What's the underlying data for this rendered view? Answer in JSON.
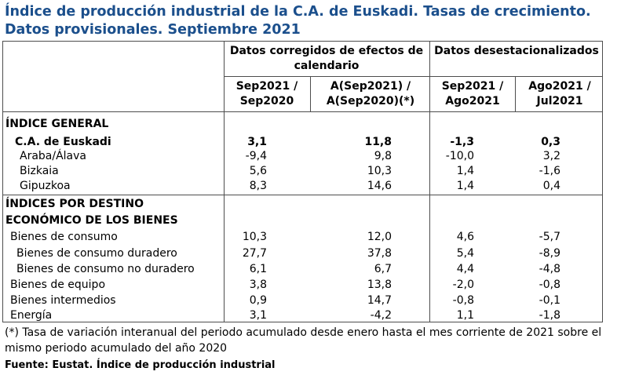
{
  "title": {
    "line1": "Índice de producción industrial de la C.A. de Euskadi. Tasas de crecimiento.",
    "line2": "Datos provisionales. Septiembre 2021"
  },
  "header": {
    "group1": "Datos corregidos de efectos de calendario",
    "group2": "Datos desestacionalizados",
    "col1": "Sep2021 / Sep2020",
    "col2": "A(Sep2021) / A(Sep2020)(*)",
    "col3": "Sep2021 / Ago2021",
    "col4": "Ago2021 / Jul2021"
  },
  "sections": {
    "general": "ÍNDICE GENERAL",
    "destino_line1": "ÍNDICES POR DESTINO",
    "destino_line2": "ECONÓMICO DE LOS BIENES"
  },
  "rows": [
    {
      "label": "C.A. de Euskadi",
      "v": [
        "3,1",
        "11,8",
        "-1,3",
        "0,3"
      ]
    },
    {
      "label": "Araba/Álava",
      "v": [
        "-9,4",
        "9,8",
        "-10,0",
        "3,2"
      ]
    },
    {
      "label": "Bizkaia",
      "v": [
        "5,6",
        "10,3",
        "1,4",
        "-1,6"
      ]
    },
    {
      "label": "Gipuzkoa",
      "v": [
        "8,3",
        "14,6",
        "1,4",
        "0,4"
      ]
    },
    {
      "label": "Bienes de consumo",
      "v": [
        "10,3",
        "12,0",
        "4,6",
        "-5,7"
      ]
    },
    {
      "label": "Bienes de consumo duradero",
      "v": [
        "27,7",
        "37,8",
        "5,4",
        "-8,9"
      ]
    },
    {
      "label": "Bienes de consumo no duradero",
      "v": [
        "6,1",
        "6,7",
        "4,4",
        "-4,8"
      ]
    },
    {
      "label": "Bienes de equipo",
      "v": [
        "3,8",
        "13,8",
        "-2,0",
        "-0,8"
      ]
    },
    {
      "label": "Bienes intermedios",
      "v": [
        "0,9",
        "14,7",
        "-0,8",
        "-0,1"
      ]
    },
    {
      "label": "Energía",
      "v": [
        "3,1",
        "-4,2",
        "1,1",
        "-1,8"
      ]
    }
  ],
  "note": "(*) Tasa de variación interanual del periodo acumulado desde enero hasta el mes corriente de 2021 sobre el mismo periodo acumulado del año 2020",
  "source": "Fuente: Eustat. Índice de producción industrial"
}
